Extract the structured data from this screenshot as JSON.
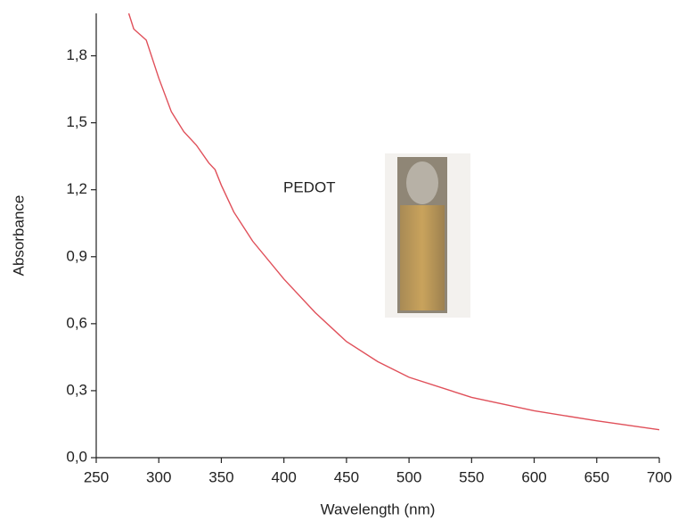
{
  "chart_data": {
    "type": "line",
    "x_label": "Wavelength (nm)",
    "y_label": "Absorbance",
    "annotation": "PEDOT",
    "color": "#e0505a",
    "x": [
      276,
      280,
      290,
      300,
      310,
      320,
      330,
      340,
      345,
      350,
      360,
      375,
      400,
      425,
      450,
      475,
      500,
      550,
      600,
      650,
      700
    ],
    "values": [
      1.99,
      1.92,
      1.87,
      1.7,
      1.55,
      1.46,
      1.4,
      1.32,
      1.29,
      1.22,
      1.1,
      0.97,
      0.8,
      0.65,
      0.52,
      0.43,
      0.36,
      0.27,
      0.21,
      0.165,
      0.125
    ],
    "xlim": [
      250,
      700
    ],
    "ylim": [
      0,
      1.99
    ],
    "xticks": [
      250,
      300,
      350,
      400,
      450,
      500,
      550,
      600,
      650,
      700
    ],
    "yticks": [
      {
        "value": 0,
        "label": "0,0"
      },
      {
        "value": 0.3,
        "label": "0,3"
      },
      {
        "value": 0.6,
        "label": "0,6"
      },
      {
        "value": 0.9,
        "label": "0,9"
      },
      {
        "value": 1.2,
        "label": "1,2"
      },
      {
        "value": 1.5,
        "label": "1,5"
      },
      {
        "value": 1.8,
        "label": "1,8"
      }
    ]
  }
}
